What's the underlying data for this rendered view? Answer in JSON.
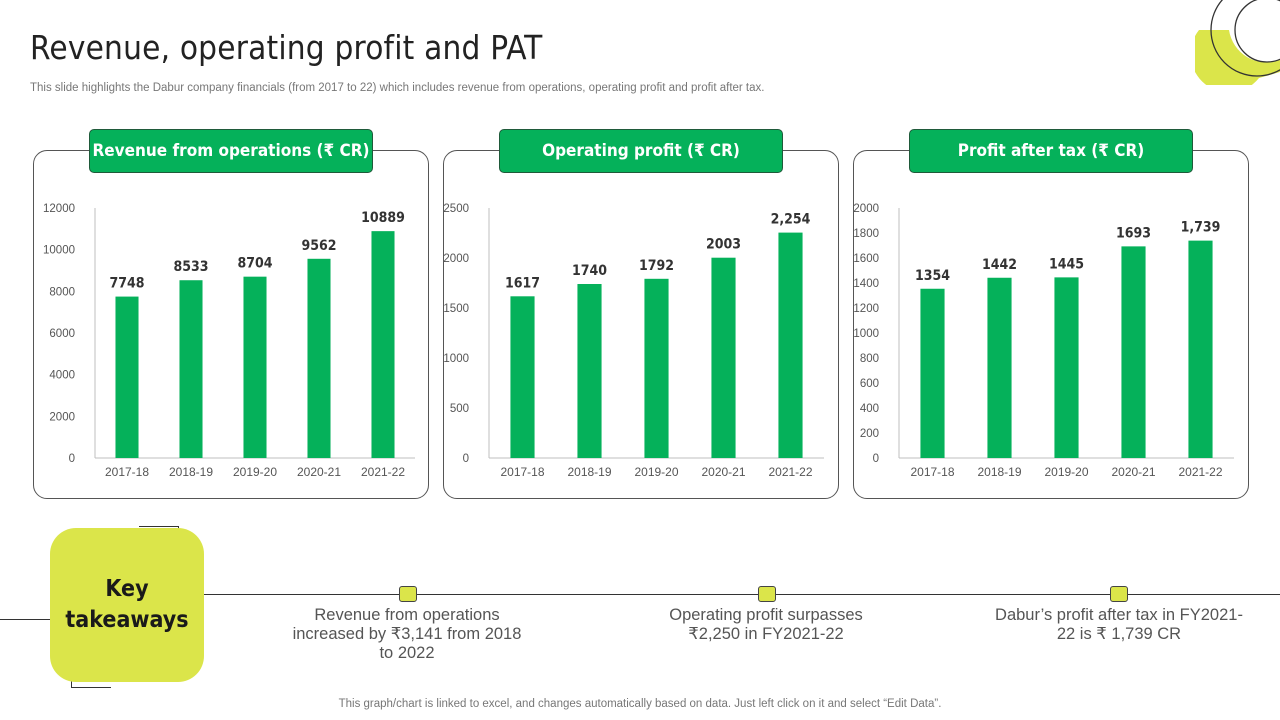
{
  "title": "Revenue, operating profit and PAT",
  "subtitle": "This slide highlights the Dabur company financials (from 2017 to 22) which includes revenue from operations, operating profit and profit after tax.",
  "colors": {
    "bar": "#05b15a",
    "header": "#05b15a",
    "accent": "#dbe54a"
  },
  "chart_data": [
    {
      "type": "bar",
      "title": "Revenue from operations (₹ CR)",
      "categories": [
        "2017-18",
        "2018-19",
        "2019-20",
        "2020-21",
        "2021-22"
      ],
      "values": [
        7748,
        8533,
        8704,
        9562,
        10889
      ],
      "data_labels": [
        "7748",
        "8533",
        "8704",
        "9562",
        "10889"
      ],
      "ylim": [
        0,
        12000
      ],
      "yticks": [
        "0",
        "2000",
        "4000",
        "6000",
        "8000",
        "10000",
        "12000"
      ],
      "grid": false
    },
    {
      "type": "bar",
      "title": "Operating profit (₹ CR)",
      "categories": [
        "2017-18",
        "2018-19",
        "2019-20",
        "2020-21",
        "2021-22"
      ],
      "values": [
        1617,
        1740,
        1792,
        2003,
        2254
      ],
      "data_labels": [
        "1617",
        "1740",
        "1792",
        "2003",
        "2,254"
      ],
      "ylim": [
        0,
        2500
      ],
      "yticks": [
        "0",
        "500",
        "1000",
        "1500",
        "2000",
        "2500"
      ],
      "grid": false
    },
    {
      "type": "bar",
      "title": "Profit after tax (₹ CR)",
      "categories": [
        "2017-18",
        "2018-19",
        "2019-20",
        "2020-21",
        "2021-22"
      ],
      "values": [
        1354,
        1442,
        1445,
        1693,
        1739
      ],
      "data_labels": [
        "1354",
        "1442",
        "1445",
        "1693",
        "1,739"
      ],
      "ylim": [
        0,
        2000
      ],
      "yticks": [
        "0",
        "200",
        "400",
        "600",
        "800",
        "1000",
        "1200",
        "1400",
        "1600",
        "1800",
        "2000"
      ],
      "grid": false
    }
  ],
  "takeaways": {
    "heading_line1": "Key",
    "heading_line2": "takeaways",
    "items": [
      {
        "text": "Revenue from operations increased by ₹3,141 from 2018 to 2022"
      },
      {
        "text": "Operating profit surpasses ₹2,250 in FY2021-22"
      },
      {
        "text": "Dabur’s profit after tax in FY2021-22 is ₹ 1,739 CR"
      }
    ]
  },
  "footer": "This graph/chart is linked to excel, and changes automatically based on data. Just left click on it and select “Edit Data”."
}
